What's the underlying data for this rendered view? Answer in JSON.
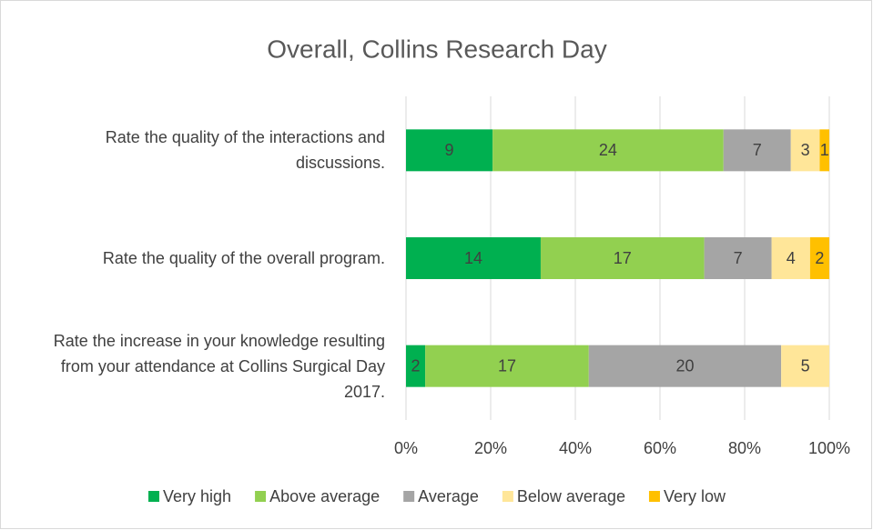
{
  "chart_data": {
    "type": "bar",
    "orientation": "horizontal",
    "stacked": "percent",
    "title": "Overall, Collins Research Day",
    "categories": [
      "Rate the quality of the interactions and discussions.",
      "Rate the quality of the overall program.",
      "Rate the increase in your knowledge resulting from your attendance at Collins Surgical Day 2017."
    ],
    "series": [
      {
        "name": "Very high",
        "color": "#00b050",
        "values": [
          9,
          14,
          2
        ]
      },
      {
        "name": "Above average",
        "color": "#92d050",
        "values": [
          24,
          17,
          17
        ]
      },
      {
        "name": "Average",
        "color": "#a5a5a5",
        "values": [
          7,
          7,
          20
        ]
      },
      {
        "name": "Below average",
        "color": "#ffe699",
        "values": [
          3,
          4,
          5
        ]
      },
      {
        "name": "Very low",
        "color": "#ffc000",
        "values": [
          1,
          2,
          null
        ]
      }
    ],
    "xlim": [
      0,
      100
    ],
    "xticks": [
      {
        "value": 0,
        "label": "0%"
      },
      {
        "value": 20,
        "label": "20%"
      },
      {
        "value": 40,
        "label": "40%"
      },
      {
        "value": 60,
        "label": "60%"
      },
      {
        "value": 80,
        "label": "80%"
      },
      {
        "value": 100,
        "label": "100%"
      }
    ],
    "grid": true,
    "legend": "bottom"
  }
}
